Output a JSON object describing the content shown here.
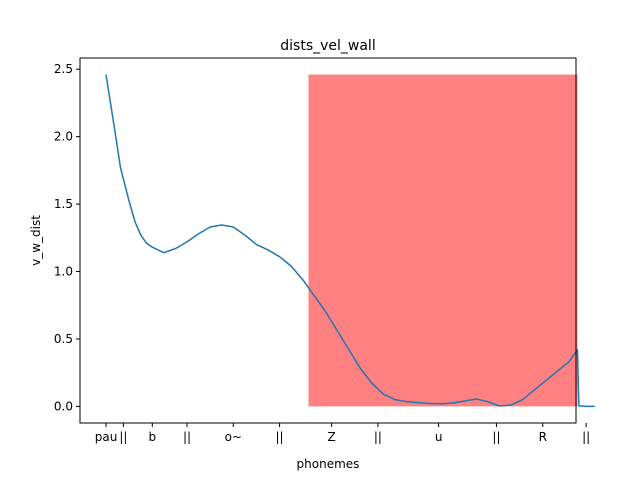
{
  "chart_data": {
    "type": "line",
    "title": "dists_vel_wall",
    "xlabel": "phonemes",
    "ylabel": "v_w_dist",
    "xlim": [
      -0.9,
      16.25
    ],
    "ylim": [
      -0.123,
      2.583
    ],
    "grid": false,
    "x_tick_positions": [
      0,
      0.6,
      1.6,
      2.8,
      4.4,
      6.0,
      7.8,
      9.4,
      11.5,
      13.5,
      15.1,
      16.6
    ],
    "x_tick_labels": [
      "pau",
      "||",
      "b",
      "||",
      "o~",
      "||",
      "Z",
      "||",
      "u",
      "||",
      "R",
      "||"
    ],
    "y_ticks": [
      0.0,
      0.5,
      1.0,
      1.5,
      2.0,
      2.5
    ],
    "y_tick_labels": [
      "0.0",
      "0.5",
      "1.0",
      "1.5",
      "2.0",
      "2.5"
    ],
    "highlight_region": {
      "x_start": 7.0,
      "x_end": 16.3,
      "y_start": 0.0,
      "y_end": 2.46,
      "color": "#ff8080"
    },
    "series": [
      {
        "name": "v_w_dist",
        "color": "#1f77b4",
        "x": [
          0,
          0.3,
          0.5,
          0.8,
          1.0,
          1.2,
          1.4,
          1.6,
          2.0,
          2.4,
          2.8,
          3.2,
          3.6,
          4.0,
          4.4,
          4.8,
          5.2,
          5.4,
          5.6,
          6.0,
          6.4,
          6.8,
          7.2,
          7.6,
          8.0,
          8.4,
          8.8,
          9.2,
          9.6,
          10.0,
          10.4,
          10.8,
          11.2,
          11.6,
          12.0,
          12.4,
          12.8,
          13.2,
          13.6,
          14.0,
          14.4,
          14.8,
          15.2,
          15.6,
          16.0,
          16.3,
          16.35,
          16.6,
          16.9
        ],
        "y": [
          2.46,
          2.05,
          1.77,
          1.52,
          1.37,
          1.27,
          1.21,
          1.18,
          1.14,
          1.17,
          1.22,
          1.28,
          1.33,
          1.345,
          1.33,
          1.27,
          1.2,
          1.18,
          1.16,
          1.11,
          1.04,
          0.94,
          0.82,
          0.7,
          0.56,
          0.42,
          0.28,
          0.17,
          0.09,
          0.05,
          0.035,
          0.028,
          0.022,
          0.02,
          0.025,
          0.04,
          0.055,
          0.035,
          0.003,
          0.01,
          0.05,
          0.12,
          0.19,
          0.26,
          0.33,
          0.42,
          0.005,
          0.0,
          0.0
        ]
      }
    ]
  }
}
